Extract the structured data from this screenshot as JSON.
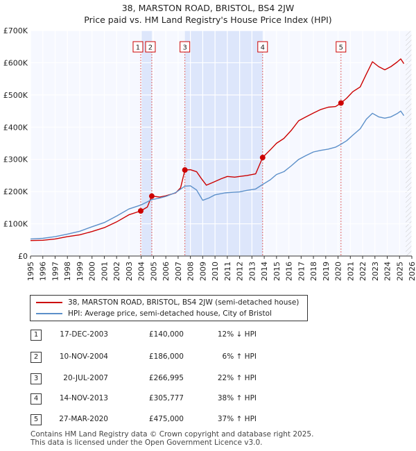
{
  "chart_data": {
    "type": "line",
    "title": "38, MARSTON ROAD, BRISTOL, BS4 2JW",
    "subtitle": "Price paid vs. HM Land Registry's House Price Index (HPI)",
    "xlim": [
      1995,
      2026
    ],
    "ylim": [
      0,
      700000
    ],
    "x_ticks": [
      "1995",
      "1996",
      "1997",
      "1998",
      "1999",
      "2000",
      "2001",
      "2002",
      "2003",
      "2004",
      "2005",
      "2006",
      "2007",
      "2008",
      "2009",
      "2010",
      "2011",
      "2012",
      "2013",
      "2014",
      "2015",
      "2016",
      "2017",
      "2018",
      "2019",
      "2020",
      "2021",
      "2022",
      "2023",
      "2024",
      "2025",
      "2026"
    ],
    "y_ticks": [
      {
        "value": 0,
        "label": "£0"
      },
      {
        "value": 100000,
        "label": "£100K"
      },
      {
        "value": 200000,
        "label": "£200K"
      },
      {
        "value": 300000,
        "label": "£300K"
      },
      {
        "value": 400000,
        "label": "£400K"
      },
      {
        "value": 500000,
        "label": "£500K"
      },
      {
        "value": 600000,
        "label": "£600K"
      },
      {
        "value": 700000,
        "label": "£700K"
      }
    ],
    "grid": true,
    "series": [
      {
        "name": "38, MARSTON ROAD, BRISTOL, BS4 2JW (semi-detached house)",
        "color": "#cc0000",
        "points": [
          [
            1995,
            48000
          ],
          [
            1996,
            49000
          ],
          [
            1997,
            53000
          ],
          [
            1998,
            60000
          ],
          [
            1999,
            66000
          ],
          [
            2000,
            76000
          ],
          [
            2001,
            88000
          ],
          [
            2002,
            106000
          ],
          [
            2003,
            128000
          ],
          [
            2003.96,
            140000
          ],
          [
            2004.5,
            152000
          ],
          [
            2004.86,
            186000
          ],
          [
            2005.5,
            183000
          ],
          [
            2006,
            187000
          ],
          [
            2006.8,
            196000
          ],
          [
            2007.2,
            212000
          ],
          [
            2007.55,
            266995
          ],
          [
            2008,
            268000
          ],
          [
            2008.5,
            262000
          ],
          [
            2008.9,
            240000
          ],
          [
            2009.3,
            220000
          ],
          [
            2009.8,
            228000
          ],
          [
            2010.5,
            240000
          ],
          [
            2011,
            247000
          ],
          [
            2011.6,
            245000
          ],
          [
            2012,
            247000
          ],
          [
            2012.6,
            250000
          ],
          [
            2013.3,
            255000
          ],
          [
            2013.87,
            305777
          ],
          [
            2014.5,
            330000
          ],
          [
            2015,
            350000
          ],
          [
            2015.6,
            365000
          ],
          [
            2016.2,
            390000
          ],
          [
            2016.8,
            420000
          ],
          [
            2017.4,
            432000
          ],
          [
            2018,
            444000
          ],
          [
            2018.6,
            455000
          ],
          [
            2019.2,
            462000
          ],
          [
            2019.8,
            464000
          ],
          [
            2020.24,
            475000
          ],
          [
            2020.7,
            490000
          ],
          [
            2021.2,
            510000
          ],
          [
            2021.8,
            525000
          ],
          [
            2022.3,
            565000
          ],
          [
            2022.8,
            603000
          ],
          [
            2023.3,
            588000
          ],
          [
            2023.8,
            578000
          ],
          [
            2024.3,
            588000
          ],
          [
            2024.8,
            602000
          ],
          [
            2025.1,
            612000
          ],
          [
            2025.35,
            597000
          ]
        ]
      },
      {
        "name": "HPI: Average price, semi-detached house, City of Bristol",
        "color": "#5b8fc9",
        "points": [
          [
            1995,
            53000
          ],
          [
            1996,
            55000
          ],
          [
            1997,
            60000
          ],
          [
            1998,
            68000
          ],
          [
            1999,
            77000
          ],
          [
            2000,
            91000
          ],
          [
            2001,
            104000
          ],
          [
            2002,
            124000
          ],
          [
            2003,
            146000
          ],
          [
            2003.96,
            158000
          ],
          [
            2004.86,
            175000
          ],
          [
            2005.5,
            180000
          ],
          [
            2006,
            185000
          ],
          [
            2006.8,
            197000
          ],
          [
            2007.55,
            217000
          ],
          [
            2008,
            218000
          ],
          [
            2008.5,
            205000
          ],
          [
            2009,
            173000
          ],
          [
            2009.5,
            180000
          ],
          [
            2010,
            190000
          ],
          [
            2010.8,
            196000
          ],
          [
            2011.5,
            198000
          ],
          [
            2012,
            199000
          ],
          [
            2012.6,
            204000
          ],
          [
            2013.3,
            208000
          ],
          [
            2013.87,
            222000
          ],
          [
            2014.5,
            237000
          ],
          [
            2015,
            253000
          ],
          [
            2015.6,
            262000
          ],
          [
            2016.2,
            280000
          ],
          [
            2016.8,
            300000
          ],
          [
            2017.4,
            312000
          ],
          [
            2018,
            323000
          ],
          [
            2018.6,
            328000
          ],
          [
            2019.2,
            332000
          ],
          [
            2019.8,
            338000
          ],
          [
            2020.24,
            347000
          ],
          [
            2020.7,
            358000
          ],
          [
            2021.2,
            375000
          ],
          [
            2021.8,
            395000
          ],
          [
            2022.3,
            425000
          ],
          [
            2022.8,
            443000
          ],
          [
            2023.3,
            432000
          ],
          [
            2023.8,
            428000
          ],
          [
            2024.3,
            432000
          ],
          [
            2024.8,
            442000
          ],
          [
            2025.1,
            450000
          ],
          [
            2025.35,
            436000
          ]
        ]
      }
    ],
    "sales": [
      {
        "id": "1",
        "x": 2003.96,
        "y": 140000
      },
      {
        "id": "2",
        "x": 2004.86,
        "y": 186000
      },
      {
        "id": "3",
        "x": 2007.55,
        "y": 266995
      },
      {
        "id": "4",
        "x": 2013.87,
        "y": 305777
      },
      {
        "id": "5",
        "x": 2020.24,
        "y": 475000
      }
    ],
    "shaded_ranges": [
      [
        2003.96,
        2004.86
      ],
      [
        2007.55,
        2013.87
      ]
    ],
    "forecast_from": 2025.5
  },
  "legend": {
    "property": "38, MARSTON ROAD, BRISTOL, BS4 2JW (semi-detached house)",
    "hpi": "HPI: Average price, semi-detached house, City of Bristol",
    "property_color": "#cc0000",
    "hpi_color": "#5b8fc9"
  },
  "table": [
    {
      "id": "1",
      "date": "17-DEC-2003",
      "price": "£140,000",
      "hpi": "12% ↓ HPI"
    },
    {
      "id": "2",
      "date": "10-NOV-2004",
      "price": "£186,000",
      "hpi": "6% ↑ HPI"
    },
    {
      "id": "3",
      "date": "20-JUL-2007",
      "price": "£266,995",
      "hpi": "22% ↑ HPI"
    },
    {
      "id": "4",
      "date": "14-NOV-2013",
      "price": "£305,777",
      "hpi": "38% ↑ HPI"
    },
    {
      "id": "5",
      "date": "27-MAR-2020",
      "price": "£475,000",
      "hpi": "37% ↑ HPI"
    }
  ],
  "footer": {
    "line1": "Contains HM Land Registry data © Crown copyright and database right 2025.",
    "line2": "This data is licensed under the Open Government Licence v3.0."
  }
}
